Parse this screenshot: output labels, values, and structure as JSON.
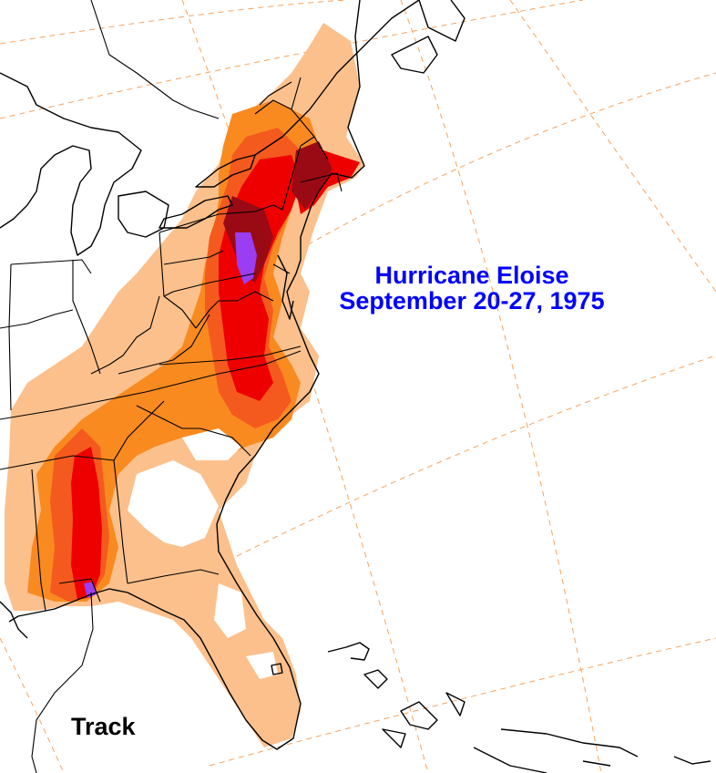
{
  "title": {
    "line1": "Hurricane Eloise",
    "line2": "September 20-27, 1975",
    "color": "#0000ff"
  },
  "track_label": "Track",
  "map": {
    "region": "Eastern United States",
    "features": [
      "state-borders",
      "coastline",
      "graticule",
      "storm-track",
      "rainfall-shading"
    ]
  },
  "rainfall_colors": {
    "lightest": "#fcc08c",
    "light": "#f98a20",
    "moderate": "#f45a1e",
    "heavy": "#ee0000",
    "very_heavy": "#9a0a14",
    "extreme": "#9b3df2"
  },
  "colors": {
    "graticule": "#f4a460",
    "lines": "#000000",
    "background": "#ffffff"
  }
}
